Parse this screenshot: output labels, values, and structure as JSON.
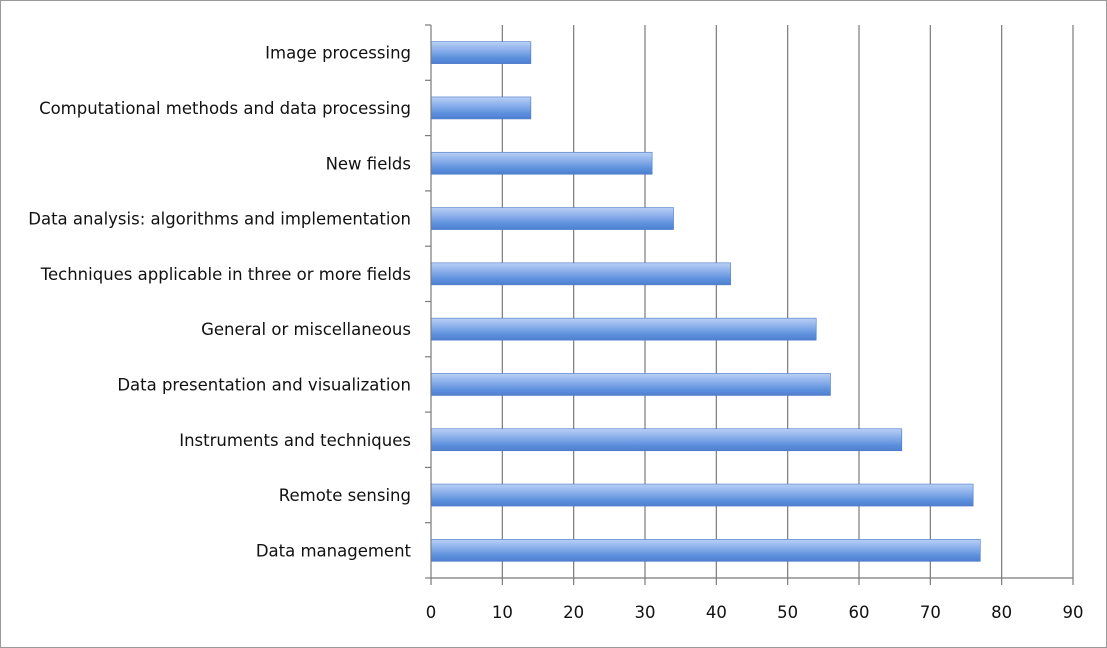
{
  "chart_data": {
    "type": "bar",
    "orientation": "horizontal",
    "title": "",
    "xlabel": "",
    "ylabel": "",
    "categories": [
      "Image processing",
      "Computational methods and data processing",
      "New fields",
      "Data analysis: algorithms and implementation",
      "Techniques applicable in three or more fields",
      "General or miscellaneous",
      "Data presentation and visualization",
      "Instruments and techniques",
      "Remote sensing",
      "Data management"
    ],
    "values": [
      14,
      14,
      31,
      34,
      42,
      54,
      56,
      66,
      76,
      77
    ],
    "xlim": [
      0,
      90
    ],
    "xticks": [
      "0",
      "10",
      "20",
      "30",
      "40",
      "50",
      "60",
      "70",
      "80",
      "90"
    ],
    "grid": "vertical",
    "legend": "none",
    "bar_color": "#5b8fdc",
    "bar_highlight": "#b9d0f5"
  }
}
